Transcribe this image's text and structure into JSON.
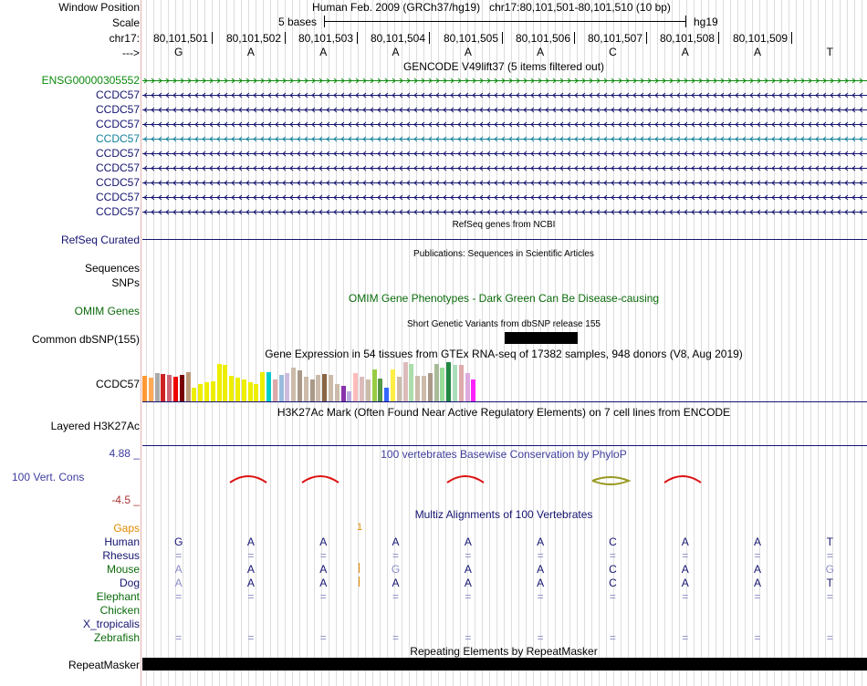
{
  "header": {
    "window_position_label": "Window Position",
    "scale_label": "Scale",
    "chrom_label": "chr17:",
    "strand_label": "--->",
    "position_text": "Human Feb. 2009 (GRCh37/hg19)   chr17:80,101,501-80,101,510 (10 bp)",
    "scale_text": "5 bases",
    "assembly": "hg19",
    "coordinates": [
      "80,101,501",
      "80,101,502",
      "80,101,503",
      "80,101,504",
      "80,101,505",
      "80,101,506",
      "80,101,507",
      "80,101,508",
      "80,101,509"
    ],
    "bases": [
      "G",
      "A",
      "A",
      "A",
      "A",
      "A",
      "C",
      "A",
      "A",
      "T"
    ]
  },
  "gencode": {
    "title": "GENCODE V49lift37 (5 items filtered out)",
    "transcripts": [
      {
        "name": "ENSG00000305552",
        "color": "#0b8a0b",
        "strand": "+"
      },
      {
        "name": "CCDC57",
        "color": "#141471",
        "strand": "-"
      },
      {
        "name": "CCDC57",
        "color": "#141471",
        "strand": "-"
      },
      {
        "name": "CCDC57",
        "color": "#141471",
        "strand": "-"
      },
      {
        "name": "CCDC57",
        "color": "#127f9b",
        "strand": "-"
      },
      {
        "name": "CCDC57",
        "color": "#141471",
        "strand": "-"
      },
      {
        "name": "CCDC57",
        "color": "#141471",
        "strand": "-"
      },
      {
        "name": "CCDC57",
        "color": "#141471",
        "strand": "-"
      },
      {
        "name": "CCDC57",
        "color": "#141471",
        "strand": "-"
      },
      {
        "name": "CCDC57",
        "color": "#141471",
        "strand": "-"
      }
    ]
  },
  "refseq": {
    "title": "RefSeq genes from NCBI",
    "label": "RefSeq Curated"
  },
  "publications": {
    "title": "Publications: Sequences in Scientific Articles",
    "label1": "Sequences",
    "label2": "SNPs"
  },
  "omim": {
    "title": "OMIM Gene Phenotypes - Dark Green Can Be Disease-causing",
    "label": "OMIM Genes"
  },
  "dbsnp": {
    "title": "Short Genetic Variants from dbSNP release 155",
    "label": "Common dbSNP(155)"
  },
  "gtex": {
    "title": "Gene Expression in 54 tissues from GTEx RNA-seq of 17382 samples, 948 donors (V8, Aug 2019)",
    "label": "CCDC57",
    "bars": [
      {
        "h": 0.65,
        "c": "#ff9933"
      },
      {
        "h": 0.6,
        "c": "#ffaa55"
      },
      {
        "h": 0.72,
        "c": "#aaaaaa"
      },
      {
        "h": 0.7,
        "c": "#cc2222"
      },
      {
        "h": 0.68,
        "c": "#cc6677"
      },
      {
        "h": 0.62,
        "c": "#ee0000"
      },
      {
        "h": 0.68,
        "c": "#770000"
      },
      {
        "h": 0.75,
        "c": "#bb9977"
      },
      {
        "h": 0.35,
        "c": "#eeee00"
      },
      {
        "h": 0.45,
        "c": "#eeee00"
      },
      {
        "h": 0.48,
        "c": "#eeee00"
      },
      {
        "h": 0.52,
        "c": "#eeee00"
      },
      {
        "h": 0.95,
        "c": "#eeee00"
      },
      {
        "h": 0.92,
        "c": "#eeee00"
      },
      {
        "h": 0.65,
        "c": "#eeee00"
      },
      {
        "h": 0.6,
        "c": "#eeee00"
      },
      {
        "h": 0.55,
        "c": "#eeee00"
      },
      {
        "h": 0.48,
        "c": "#eeee00"
      },
      {
        "h": 0.45,
        "c": "#eeee00"
      },
      {
        "h": 0.75,
        "c": "#eeee00"
      },
      {
        "h": 0.75,
        "c": "#00cccc"
      },
      {
        "h": 0.55,
        "c": "#ddaaaa"
      },
      {
        "h": 0.68,
        "c": "#99bbdd"
      },
      {
        "h": 0.72,
        "c": "#ccbbdd"
      },
      {
        "h": 0.85,
        "c": "#ccbbaa"
      },
      {
        "h": 0.8,
        "c": "#aa9988"
      },
      {
        "h": 0.62,
        "c": "#ccbbaa"
      },
      {
        "h": 0.55,
        "c": "#aa9988"
      },
      {
        "h": 0.68,
        "c": "#ccbbaa"
      },
      {
        "h": 0.7,
        "c": "#886644"
      },
      {
        "h": 0.68,
        "c": "#ccbbaa"
      },
      {
        "h": 0.45,
        "c": "#ccbbaa"
      },
      {
        "h": 0.4,
        "c": "#8833aa"
      },
      {
        "h": 0.25,
        "c": "#bbaadd"
      },
      {
        "h": 0.72,
        "c": "#ffbbbb"
      },
      {
        "h": 0.62,
        "c": "#ddbbbb"
      },
      {
        "h": 0.55,
        "c": "#ccbbaa"
      },
      {
        "h": 0.82,
        "c": "#99cc44"
      },
      {
        "h": 0.58,
        "c": "#559944"
      },
      {
        "h": 0.35,
        "c": "#3366ff"
      },
      {
        "h": 0.82,
        "c": "#ffee44"
      },
      {
        "h": 0.62,
        "c": "#ccbbaa"
      },
      {
        "h": 1.0,
        "c": "#ddbbbb"
      },
      {
        "h": 0.95,
        "c": "#aaddaa"
      },
      {
        "h": 0.65,
        "c": "#ccbbaa"
      },
      {
        "h": 0.65,
        "c": "#ccbbaa"
      },
      {
        "h": 0.72,
        "c": "#aa9988"
      },
      {
        "h": 0.95,
        "c": "#aabb99"
      },
      {
        "h": 0.85,
        "c": "#99dd99"
      },
      {
        "h": 1.0,
        "c": "#228844"
      },
      {
        "h": 0.92,
        "c": "#aaddbb"
      },
      {
        "h": 0.92,
        "c": "#ddaaaa"
      },
      {
        "h": 0.72,
        "c": "#ddaadd"
      },
      {
        "h": 0.55,
        "c": "#ff22ff"
      }
    ]
  },
  "h3k27ac": {
    "title": "H3K27Ac Mark (Often Found Near Active Regulatory Elements) on 7 cell lines from ENCODE",
    "label": "Layered H3K27Ac"
  },
  "phylop": {
    "title": "100 vertebrates Basewise Conservation by PhyloP",
    "label": "100 Vert. Cons",
    "ymax": "4.88 _",
    "ymin": "-4.5 _"
  },
  "multiz": {
    "title": "Multiz Alignments of 100 Vertebrates",
    "gaps_label": "Gaps",
    "gap_count": "1",
    "species": [
      {
        "name": "Human",
        "color": "#141471",
        "row": [
          "G",
          "A",
          "A",
          "A",
          "A",
          "A",
          "C",
          "A",
          "A",
          "T"
        ]
      },
      {
        "name": "Rhesus",
        "color": "#141471",
        "row": [
          "=",
          "=",
          "=",
          "=",
          "=",
          "=",
          "=",
          "=",
          "=",
          "="
        ]
      },
      {
        "name": "Mouse",
        "color": "#0b6b0b",
        "row": [
          "A",
          "A",
          "A",
          "G",
          "A",
          "A",
          "C",
          "A",
          "A",
          "G"
        ]
      },
      {
        "name": "Dog",
        "color": "#141471",
        "row": [
          "A",
          "A",
          "A",
          "A",
          "A",
          "A",
          "C",
          "A",
          "A",
          "T"
        ]
      },
      {
        "name": "Elephant",
        "color": "#0b6b0b",
        "row": [
          "=",
          "=",
          "=",
          "=",
          "=",
          "=",
          "=",
          "=",
          "=",
          "="
        ]
      },
      {
        "name": "Chicken",
        "color": "#0b6b0b",
        "row": [
          "",
          "",
          "",
          "",
          "",
          "",
          "",
          "",
          "",
          ""
        ]
      },
      {
        "name": "X_tropicalis",
        "color": "#141471",
        "row": [
          "",
          "",
          "",
          "",
          "",
          "",
          "",
          "",
          "",
          ""
        ]
      },
      {
        "name": "Zebrafish",
        "color": "#0b6b0b",
        "row": [
          "=",
          "=",
          "=",
          "=",
          "=",
          "=",
          "=",
          "=",
          "=",
          "="
        ]
      }
    ]
  },
  "repeatmasker": {
    "title": "Repeating Elements by RepeatMasker",
    "label": "RepeatMasker"
  }
}
